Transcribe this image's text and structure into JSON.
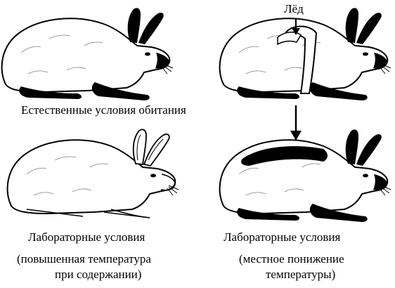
{
  "ice_label": "Лёд",
  "captions": {
    "natural": "Естественные условия обитания",
    "lab_left": "Лабораторные условия",
    "lab_right": "Лабораторные условия",
    "note_left_line1": "(повышенная температура",
    "note_left_line2": "при содержании)",
    "note_right_line1": "(местное понижение",
    "note_right_line2": "температуры)"
  },
  "colors": {
    "ink": "#000000",
    "fur": "#ffffff",
    "dark_points": "#000000"
  }
}
